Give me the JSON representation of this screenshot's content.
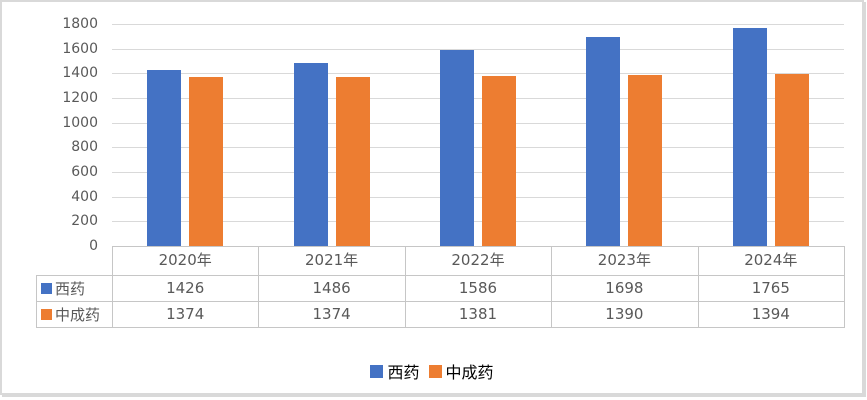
{
  "chart_data": {
    "type": "bar",
    "categories": [
      "2020年",
      "2021年",
      "2022年",
      "2023年",
      "2024年"
    ],
    "series": [
      {
        "name": "西药",
        "color": "#4472C4",
        "values": [
          1426,
          1486,
          1586,
          1698,
          1765
        ]
      },
      {
        "name": "中成药",
        "color": "#ED7D31",
        "values": [
          1374,
          1374,
          1381,
          1390,
          1394
        ]
      }
    ],
    "ylim": [
      0,
      1800
    ],
    "ytick_step": 200,
    "grid": true,
    "legend_position": "bottom",
    "data_table_shown": true
  },
  "colors": {
    "series_blue": "#4472C4",
    "series_orange": "#ED7D31",
    "gridline": "#D9D9D9",
    "table_border": "#C6C6C6",
    "axis_text": "#595959",
    "frame_border": "#D9D9D9"
  }
}
